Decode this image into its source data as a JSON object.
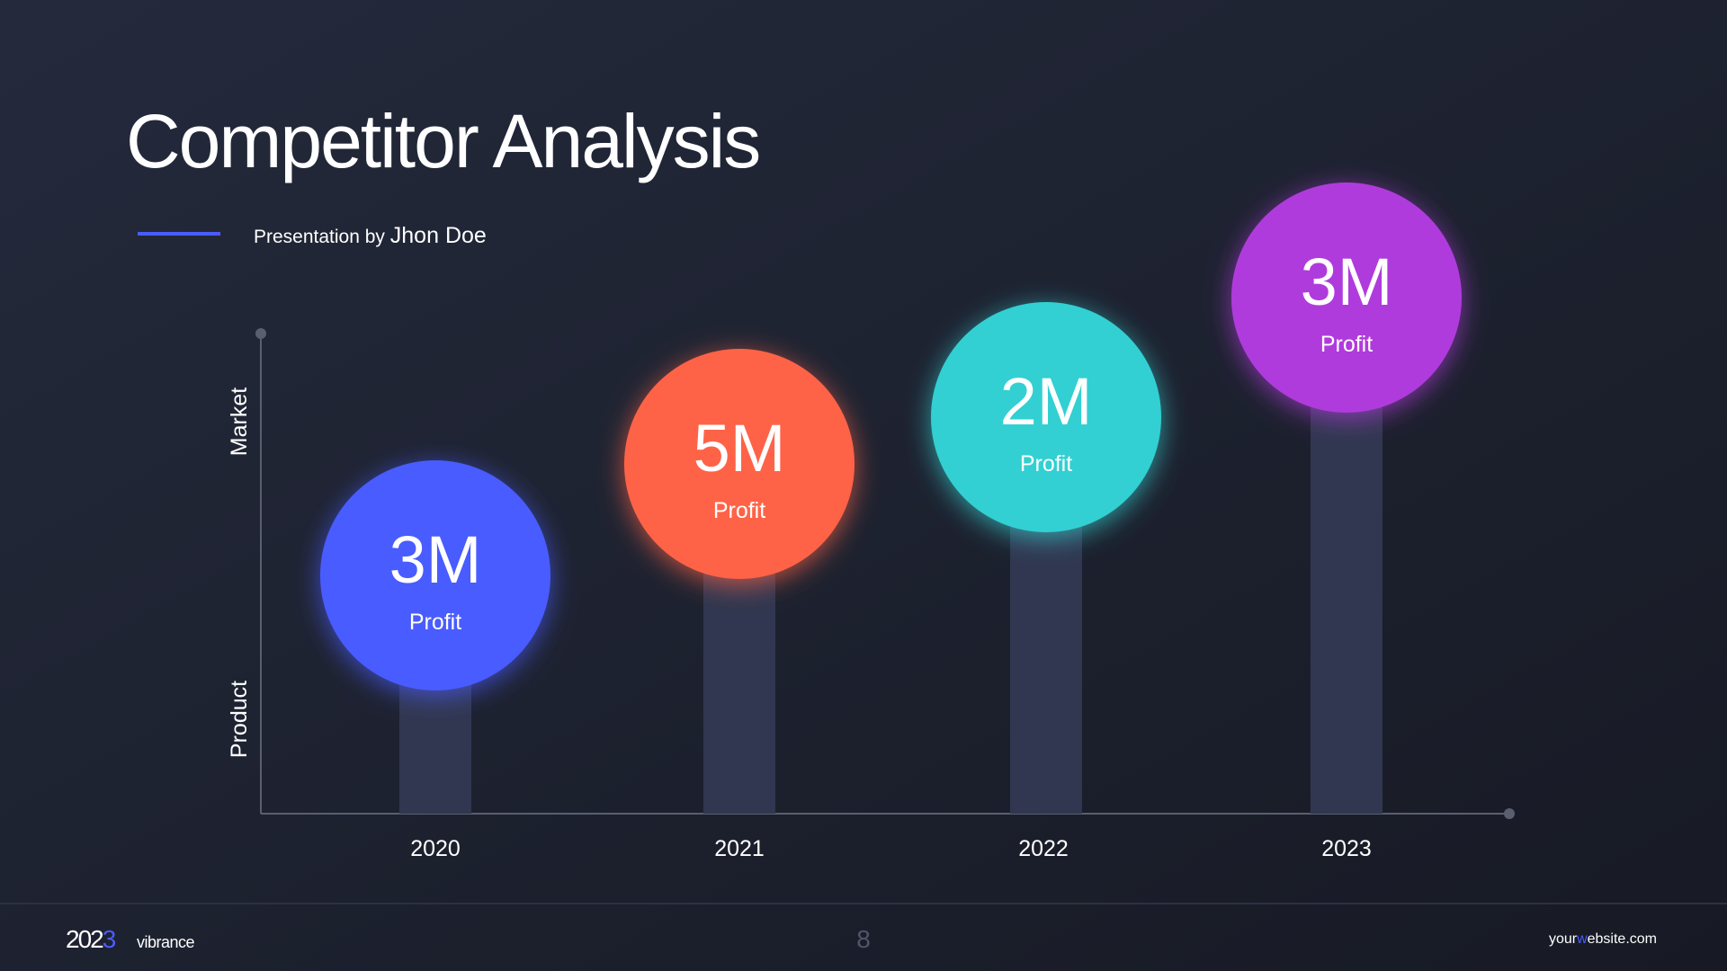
{
  "header": {
    "title": "Competitor Analysis",
    "byline": "Presentation by",
    "author": "Jhon Doe"
  },
  "axis": {
    "top_label": "Market",
    "bottom_label": "Product"
  },
  "items": [
    {
      "year": "2020",
      "value": "3M",
      "label": "Profit",
      "color": "#4a5cff"
    },
    {
      "year": "2021",
      "value": "5M",
      "label": "Profit",
      "color": "#ff6347"
    },
    {
      "year": "2022",
      "value": "2M",
      "label": "Profit",
      "color": "#33d0d2"
    },
    {
      "year": "2023",
      "value": "3M",
      "label": "Profit",
      "color": "#b03bdc"
    }
  ],
  "footer": {
    "year_start": "202",
    "year_end": "3",
    "brand": "vibrance",
    "page": "8",
    "site_start": "your",
    "site_accent": "w",
    "site_end": "ebsite.com"
  }
}
